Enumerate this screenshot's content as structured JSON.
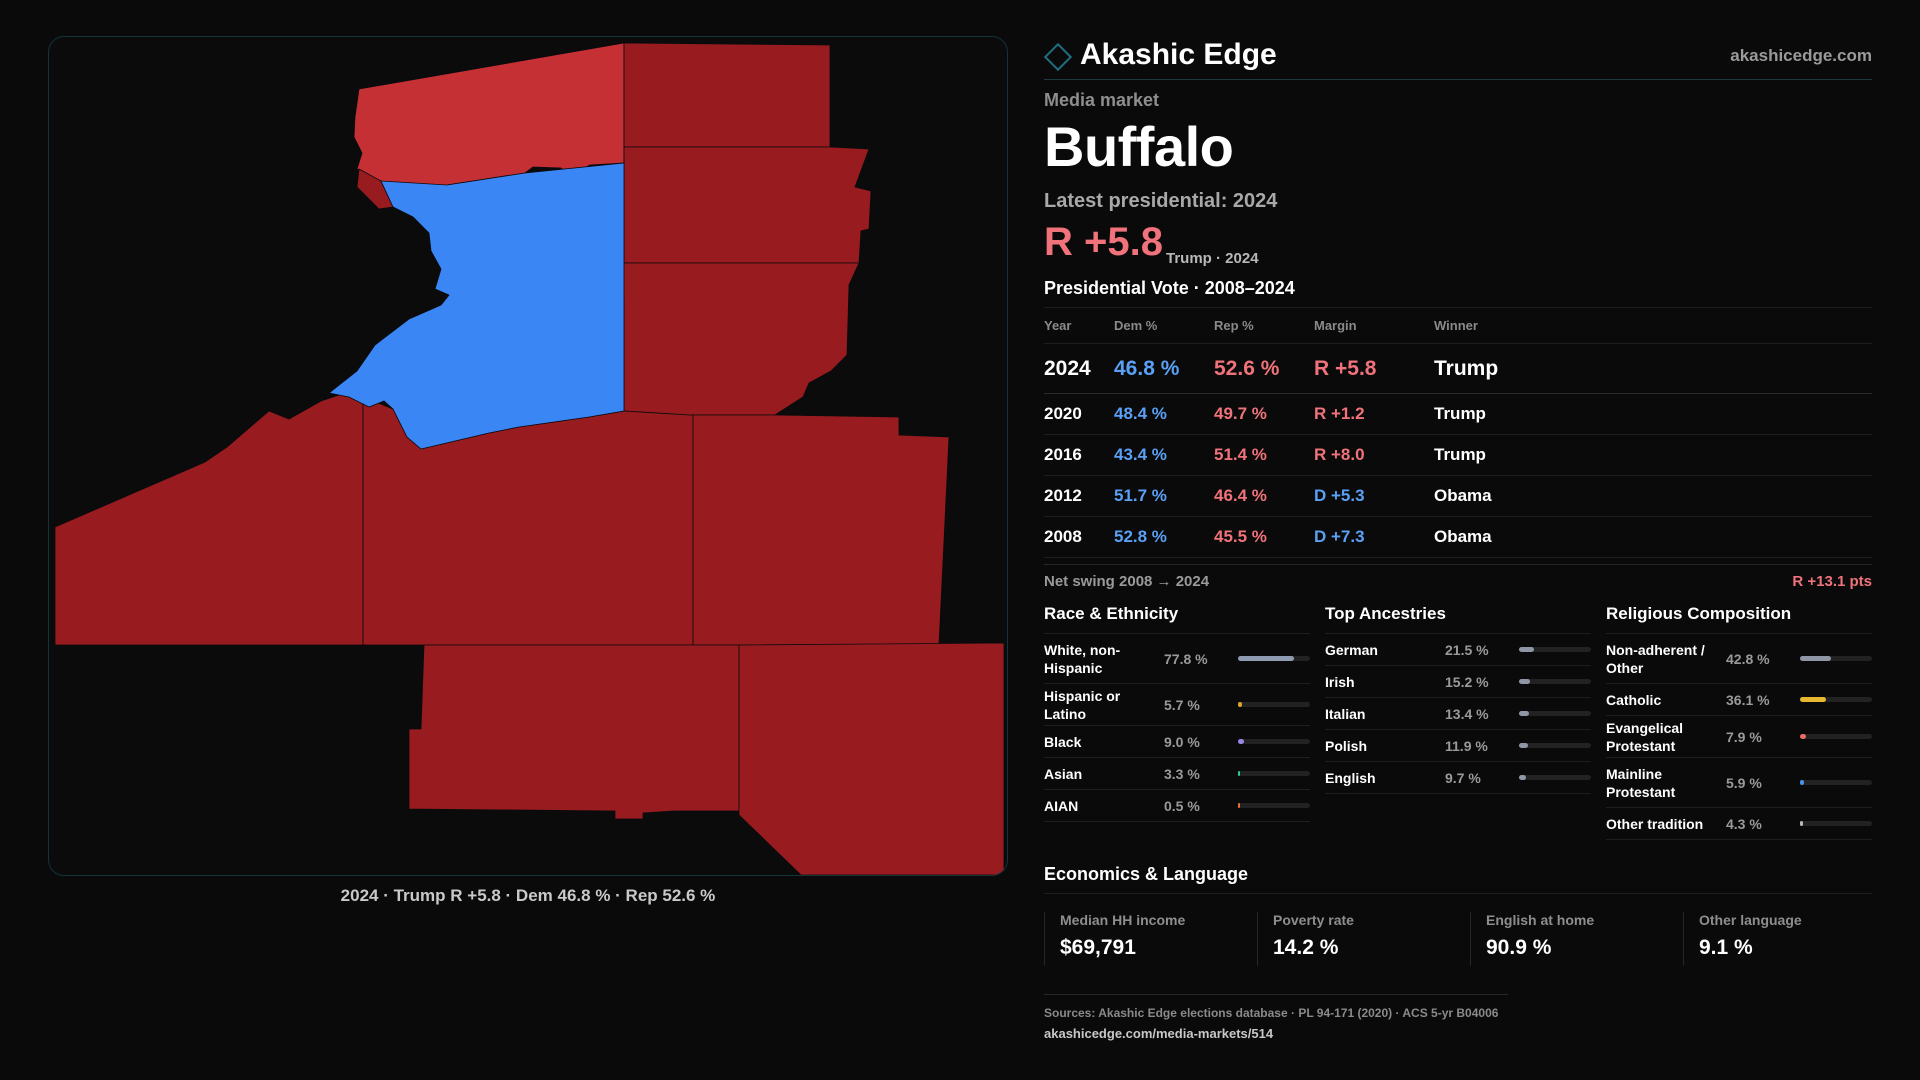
{
  "brand": {
    "name": "Akashic Edge",
    "url": "akashicedge.com"
  },
  "market": {
    "type_label": "Media market",
    "name": "Buffalo",
    "latest_label": "Latest presidential: 2024",
    "margin": "R +5.8",
    "margin_sub": "Trump · 2024"
  },
  "map": {
    "caption": "2024 · Trump R +5.8 · Dem 46.8 % · Rep 52.6 %",
    "colors": {
      "dem": "#3b86f5",
      "rep_strong": "#981b1f",
      "rep_lean": "#c53035",
      "background": "#0b0b0c"
    },
    "counties": [
      {
        "party": "rep_lean"
      },
      {
        "party": "rep_strong"
      },
      {
        "party": "rep_strong"
      },
      {
        "party": "dem"
      },
      {
        "party": "rep_strong"
      },
      {
        "party": "rep_strong"
      },
      {
        "party": "rep_strong"
      },
      {
        "party": "rep_strong"
      },
      {
        "party": "rep_strong"
      },
      {
        "party": "rep_strong"
      },
      {
        "party": "rep_strong"
      }
    ]
  },
  "vote_history": {
    "title": "Presidential Vote · 2008–2024",
    "headers": {
      "year": "Year",
      "dem": "Dem %",
      "rep": "Rep %",
      "margin": "Margin",
      "winner": "Winner"
    },
    "rows": [
      {
        "year": "2024",
        "dem": "46.8 %",
        "rep": "52.6 %",
        "margin": "R +5.8",
        "party": "R",
        "winner": "Trump"
      },
      {
        "year": "2020",
        "dem": "48.4 %",
        "rep": "49.7 %",
        "margin": "R +1.2",
        "party": "R",
        "winner": "Trump"
      },
      {
        "year": "2016",
        "dem": "43.4 %",
        "rep": "51.4 %",
        "margin": "R +8.0",
        "party": "R",
        "winner": "Trump"
      },
      {
        "year": "2012",
        "dem": "51.7 %",
        "rep": "46.4 %",
        "margin": "D +5.3",
        "party": "D",
        "winner": "Obama"
      },
      {
        "year": "2008",
        "dem": "52.8 %",
        "rep": "45.5 %",
        "margin": "D +7.3",
        "party": "D",
        "winner": "Obama"
      }
    ],
    "swing_label": "Net swing 2008 → 2024",
    "swing_value": "R +13.1 pts"
  },
  "race": {
    "title": "Race & Ethnicity",
    "items": [
      {
        "label": "White, non-Hispanic",
        "value": "77.8 %",
        "share": 77.8,
        "color": "#8f9bb0"
      },
      {
        "label": "Hispanic or Latino",
        "value": "5.7 %",
        "share": 5.7,
        "color": "#e0a030"
      },
      {
        "label": "Black",
        "value": "9.0 %",
        "share": 9.0,
        "color": "#9b86e8"
      },
      {
        "label": "Asian",
        "value": "3.3 %",
        "share": 3.3,
        "color": "#2cc79a"
      },
      {
        "label": "AIAN",
        "value": "0.5 %",
        "share": 0.5,
        "color": "#e5703a"
      }
    ]
  },
  "ancestry": {
    "title": "Top Ancestries",
    "items": [
      {
        "label": "German",
        "value": "21.5 %",
        "share": 21.5,
        "color": "#8f96a6"
      },
      {
        "label": "Irish",
        "value": "15.2 %",
        "share": 15.2,
        "color": "#8f96a6"
      },
      {
        "label": "Italian",
        "value": "13.4 %",
        "share": 13.4,
        "color": "#8f96a6"
      },
      {
        "label": "Polish",
        "value": "11.9 %",
        "share": 11.9,
        "color": "#8f96a6"
      },
      {
        "label": "English",
        "value": "9.7 %",
        "share": 9.7,
        "color": "#8f96a6"
      }
    ]
  },
  "religion": {
    "title": "Religious Composition",
    "items": [
      {
        "label": "Non-adherent / Other",
        "value": "42.8 %",
        "share": 42.8,
        "color": "#8f96a6"
      },
      {
        "label": "Catholic",
        "value": "36.1 %",
        "share": 36.1,
        "color": "#e8b830"
      },
      {
        "label": "Evangelical Protestant",
        "value": "7.9 %",
        "share": 7.9,
        "color": "#e86a6a"
      },
      {
        "label": "Mainline Protestant",
        "value": "5.9 %",
        "share": 5.9,
        "color": "#4a90e8"
      },
      {
        "label": "Other tradition",
        "value": "4.3 %",
        "share": 4.3,
        "color": "#b8b8b8"
      }
    ]
  },
  "economics": {
    "title": "Economics & Language",
    "items": [
      {
        "label": "Median HH income",
        "value": "$69,791"
      },
      {
        "label": "Poverty rate",
        "value": "14.2 %"
      },
      {
        "label": "English at home",
        "value": "90.9 %"
      },
      {
        "label": "Other language",
        "value": "9.1 %"
      }
    ]
  },
  "sources": {
    "text": "Sources: Akashic Edge elections database · PL 94-171 (2020) · ACS 5-yr B04006",
    "url": "akashicedge.com/media-markets/514"
  }
}
